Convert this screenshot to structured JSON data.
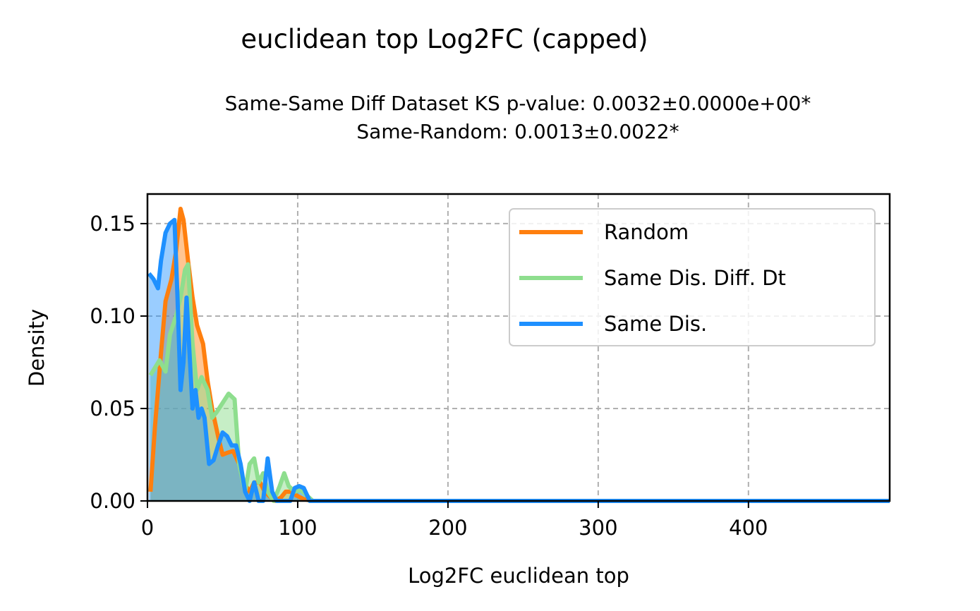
{
  "chart_data": {
    "type": "area",
    "title": "euclidean top Log2FC (capped)",
    "subtitle_lines": [
      "Same-Same Diff Dataset  KS p-value: 0.0032±0.0000e+00*",
      "Same-Random: 0.0013±0.0022*"
    ],
    "xlabel": "Log2FC euclidean top",
    "ylabel": "Density",
    "xlim": [
      0,
      494
    ],
    "ylim": [
      0,
      0.166
    ],
    "x_ticks": [
      0,
      100,
      200,
      300,
      400
    ],
    "x_tick_labels": [
      "0",
      "100",
      "200",
      "300",
      "400"
    ],
    "y_ticks": [
      0.0,
      0.05,
      0.1,
      0.15
    ],
    "y_tick_labels": [
      "0.00",
      "0.05",
      "0.10",
      "0.15"
    ],
    "grid": true,
    "legend_position": "top-right",
    "series": [
      {
        "name": "Random",
        "color": "#ff7f0e",
        "x": [
          2,
          5,
          9,
          12,
          16,
          19,
          22,
          24,
          27,
          30,
          33,
          37,
          40,
          43,
          47,
          50,
          53,
          57,
          61,
          64,
          68,
          71,
          75,
          78,
          82,
          85,
          89,
          92,
          96,
          99,
          104,
          110,
          120,
          150,
          200,
          300,
          400,
          494
        ],
        "y": [
          0.005,
          0.04,
          0.08,
          0.108,
          0.12,
          0.135,
          0.158,
          0.152,
          0.13,
          0.11,
          0.095,
          0.085,
          0.065,
          0.05,
          0.035,
          0.025,
          0.026,
          0.027,
          0.02,
          0.01,
          0.005,
          0.01,
          0.01,
          0.005,
          0.002,
          0.0,
          0.002,
          0.005,
          0.005,
          0.003,
          0.001,
          0.0,
          0.0,
          0.0,
          0.0,
          0.0,
          0.0,
          0.0
        ]
      },
      {
        "name": "Same Dis. Diff. Dt",
        "color": "#8ede8e",
        "x": [
          2,
          5,
          8,
          12,
          15,
          19,
          22,
          25,
          27,
          30,
          33,
          36,
          40,
          43,
          46,
          50,
          54,
          58,
          61,
          65,
          68,
          71,
          74,
          77,
          80,
          84,
          88,
          91,
          94,
          98,
          102,
          106,
          110,
          120,
          150,
          200,
          300,
          400,
          494
        ],
        "y": [
          0.068,
          0.072,
          0.076,
          0.07,
          0.09,
          0.1,
          0.11,
          0.125,
          0.128,
          0.085,
          0.06,
          0.067,
          0.06,
          0.045,
          0.048,
          0.053,
          0.058,
          0.055,
          0.02,
          0.005,
          0.02,
          0.023,
          0.01,
          0.015,
          0.005,
          0.0,
          0.008,
          0.015,
          0.008,
          0.005,
          0.006,
          0.003,
          0.0,
          0.0,
          0.0,
          0.0,
          0.0,
          0.0,
          0.0
        ]
      },
      {
        "name": "Same Dis.",
        "color": "#1e90ff",
        "x": [
          1,
          4,
          7,
          9,
          12,
          15,
          18,
          20,
          22,
          24,
          26,
          28,
          30,
          32,
          34,
          36,
          38,
          41,
          44,
          47,
          50,
          53,
          56,
          59,
          62,
          65,
          68,
          71,
          74,
          77,
          80,
          83,
          86,
          89,
          92,
          95,
          98,
          101,
          104,
          108,
          112,
          120,
          150,
          200,
          300,
          400,
          494
        ],
        "y": [
          0.123,
          0.12,
          0.115,
          0.13,
          0.145,
          0.15,
          0.152,
          0.11,
          0.06,
          0.075,
          0.11,
          0.08,
          0.05,
          0.06,
          0.045,
          0.05,
          0.045,
          0.02,
          0.022,
          0.03,
          0.037,
          0.035,
          0.03,
          0.03,
          0.02,
          0.005,
          0.0,
          0.01,
          0.0,
          0.0,
          0.023,
          0.005,
          0.0,
          0.0,
          0.0,
          0.0,
          0.007,
          0.008,
          0.007,
          0.0,
          0.0,
          0.0,
          0.0,
          0.0,
          0.0,
          0.0,
          0.0
        ]
      }
    ]
  }
}
